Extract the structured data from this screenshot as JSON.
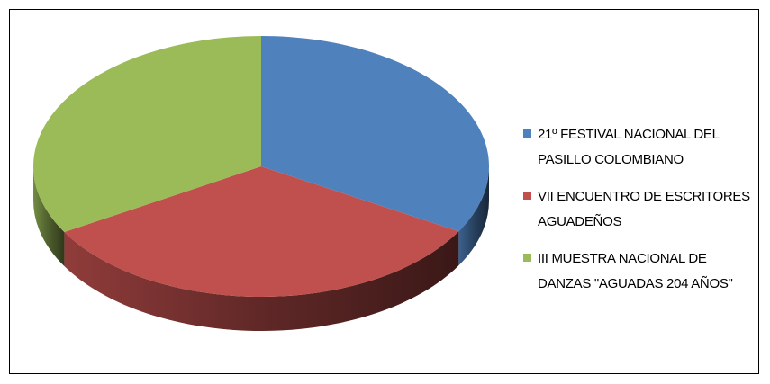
{
  "chart_data": {
    "type": "pie3d",
    "categories": [
      "21º FESTIVAL NACIONAL DEL PASILLO COLOMBIANO",
      "VII ENCUENTRO DE ESCRITORES AGUADEÑOS",
      "III MUESTRA NACIONAL DE DANZAS \"AGUADAS 204 AÑOS\""
    ],
    "values": [
      33.3,
      33.3,
      33.4
    ],
    "colors": [
      "#4f81bd",
      "#c0504d",
      "#9bbb59"
    ],
    "legend": "right"
  }
}
